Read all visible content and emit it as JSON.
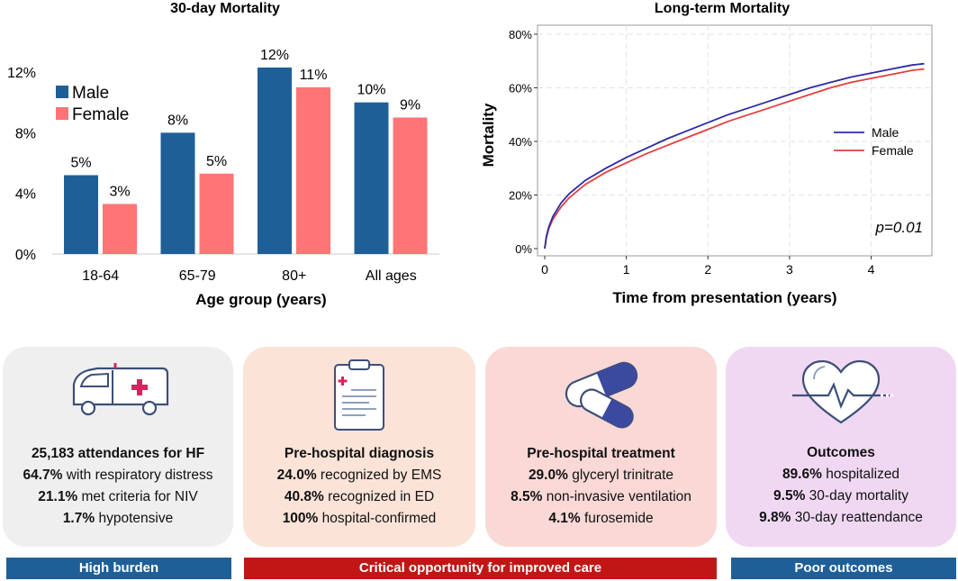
{
  "chart_data": [
    {
      "type": "bar",
      "title": "30-day Mortality",
      "xlabel": "Age group (years)",
      "ylabel": "",
      "categories": [
        "18-64",
        "65-79",
        "80+",
        "All ages"
      ],
      "ylim": [
        0,
        12
      ],
      "yticks": [
        0,
        4,
        8,
        12
      ],
      "ytick_labels": [
        "0%",
        "4%",
        "8%",
        "12%"
      ],
      "series": [
        {
          "name": "Male",
          "color": "#1f5f97",
          "values": [
            5.2,
            8.0,
            12.3,
            10.0
          ],
          "labels": [
            "5%",
            "8%",
            "12%",
            "10%"
          ]
        },
        {
          "name": "Female",
          "color": "#ff7474",
          "values": [
            3.3,
            5.3,
            11.0,
            9.0
          ],
          "labels": [
            "3%",
            "5%",
            "11%",
            "9%"
          ]
        }
      ],
      "legend": "top-left"
    },
    {
      "type": "line",
      "title": "Long-term Mortality",
      "xlabel": "Time from presentation (years)",
      "ylabel": "Mortality",
      "xlim": [
        0,
        4.7
      ],
      "ylim": [
        0,
        82
      ],
      "xticks": [
        0,
        1,
        2,
        3,
        4
      ],
      "xtick_labels": [
        "0",
        "1",
        "2",
        "3",
        "4"
      ],
      "yticks": [
        0,
        20,
        40,
        60,
        80
      ],
      "ytick_labels": [
        "0%",
        "20%",
        "40%",
        "60%",
        "80%"
      ],
      "grid": true,
      "legend": "right",
      "annotation": "p=0.01",
      "series": [
        {
          "name": "Male",
          "color": "#2d2aa6",
          "x": [
            0,
            0.02,
            0.05,
            0.1,
            0.2,
            0.3,
            0.5,
            0.75,
            1.0,
            1.25,
            1.5,
            1.75,
            2.0,
            2.25,
            2.5,
            2.75,
            3.0,
            3.25,
            3.5,
            3.75,
            4.0,
            4.25,
            4.5,
            4.65
          ],
          "y": [
            0,
            4.5,
            8,
            12,
            17,
            20.5,
            25.5,
            30,
            34,
            37.5,
            41,
            44,
            47,
            50,
            52.5,
            55,
            57.5,
            60,
            62,
            64,
            65.5,
            67,
            68.5,
            69
          ]
        },
        {
          "name": "Female",
          "color": "#e04040",
          "x": [
            0,
            0.02,
            0.05,
            0.1,
            0.2,
            0.3,
            0.5,
            0.75,
            1.0,
            1.25,
            1.5,
            1.75,
            2.0,
            2.25,
            2.5,
            2.75,
            3.0,
            3.25,
            3.5,
            3.75,
            4.0,
            4.25,
            4.5,
            4.65
          ],
          "y": [
            0,
            4,
            7.5,
            11,
            15.5,
            19,
            24,
            28.5,
            32,
            35.5,
            38.5,
            41.5,
            44.5,
            47.5,
            50,
            52.5,
            55,
            57.5,
            60,
            62,
            63.5,
            65,
            66.5,
            67
          ]
        }
      ]
    }
  ],
  "cards": {
    "burden": {
      "icon": "ambulance-icon",
      "title": "25,183 attendances for HF",
      "lines": [
        {
          "bold": "64.7%",
          "text": " with respiratory distress"
        },
        {
          "bold": "21.1%",
          "text": " met criteria for NIV"
        },
        {
          "bold": "1.7%",
          "text": " hypotensive"
        }
      ]
    },
    "diagnosis": {
      "icon": "clipboard-icon",
      "title": "Pre-hospital diagnosis",
      "lines": [
        {
          "bold": "24.0%",
          "text": " recognized by EMS"
        },
        {
          "bold": "40.8%",
          "text": " recognized in ED"
        },
        {
          "bold": "100%",
          "text": " hospital-confirmed"
        }
      ]
    },
    "treatment": {
      "icon": "pills-icon",
      "title": "Pre-hospital treatment",
      "lines": [
        {
          "bold": "29.0%",
          "text": " glyceryl trinitrate"
        },
        {
          "bold": "8.5%",
          "text": " non-invasive ventilation"
        },
        {
          "bold": "4.1%",
          "text": " furosemide"
        }
      ]
    },
    "outcomes": {
      "icon": "heartbeat-icon",
      "title": "Outcomes",
      "lines": [
        {
          "bold": "89.6%",
          "text": " hospitalized"
        },
        {
          "bold": "9.5%",
          "text": " 30-day mortality"
        },
        {
          "bold": "9.8%",
          "text": " 30-day reattendance"
        }
      ]
    }
  },
  "banners": {
    "high_burden": "High burden",
    "critical": "Critical opportunity for improved care",
    "poor_outcomes": "Poor outcomes"
  },
  "colors": {
    "male_bar": "#1f5f97",
    "female_bar": "#ff7474",
    "male_line": "#2d2aa6",
    "female_line": "#e04040",
    "banner_blue": "#1f5f97",
    "banner_red": "#c21616"
  }
}
